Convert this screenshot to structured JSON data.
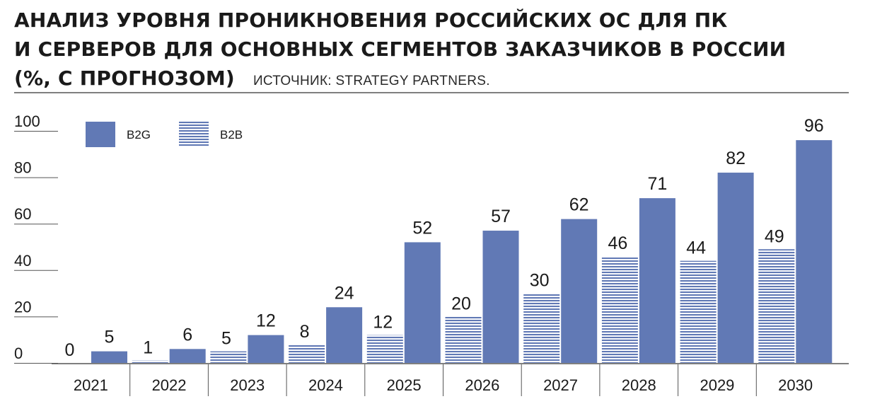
{
  "header": {
    "title_line1": "АНАЛИЗ УРОВНЯ ПРОНИКНОВЕНИЯ РОССИЙСКИХ ОС ДЛЯ ПК",
    "title_line2": "И СЕРВЕРОВ ДЛЯ ОСНОВНЫХ СЕГМЕНТОВ ЗАКАЗЧИКОВ В РОССИИ",
    "title_line3": "(%, С ПРОГНОЗОМ)",
    "source": "ИСТОЧНИК: STRATEGY PARTNERS."
  },
  "colors": {
    "b2g": "#6179b5",
    "b2b_stripe": "#6179b5",
    "rule": "#555555",
    "text": "#1a1a1a"
  },
  "chart_data": {
    "type": "bar",
    "title": "АНАЛИЗ УРОВНЯ ПРОНИКНОВЕНИЯ РОССИЙСКИХ ОС ДЛЯ ПК И СЕРВЕРОВ ДЛЯ ОСНОВНЫХ СЕГМЕНТОВ ЗАКАЗЧИКОВ В РОССИИ (%, С ПРОГНОЗОМ)",
    "subtitle": "ИСТОЧНИК: STRATEGY PARTNERS.",
    "xlabel": "",
    "ylabel": "",
    "categories": [
      "2021",
      "2022",
      "2023",
      "2024",
      "2025",
      "2026",
      "2027",
      "2028",
      "2029",
      "2030"
    ],
    "series": [
      {
        "name": "B2B",
        "pattern": "horizontal-stripes",
        "values": [
          0,
          1,
          5,
          8,
          12,
          20,
          30,
          46,
          44,
          49
        ]
      },
      {
        "name": "B2G",
        "pattern": "solid",
        "values": [
          5,
          6,
          12,
          24,
          52,
          57,
          62,
          71,
          82,
          96
        ]
      }
    ],
    "ylim": [
      0,
      100
    ],
    "yticks": [
      0,
      20,
      40,
      60,
      80,
      100
    ],
    "grid": false,
    "legend": "top-left",
    "data_labels": true
  }
}
